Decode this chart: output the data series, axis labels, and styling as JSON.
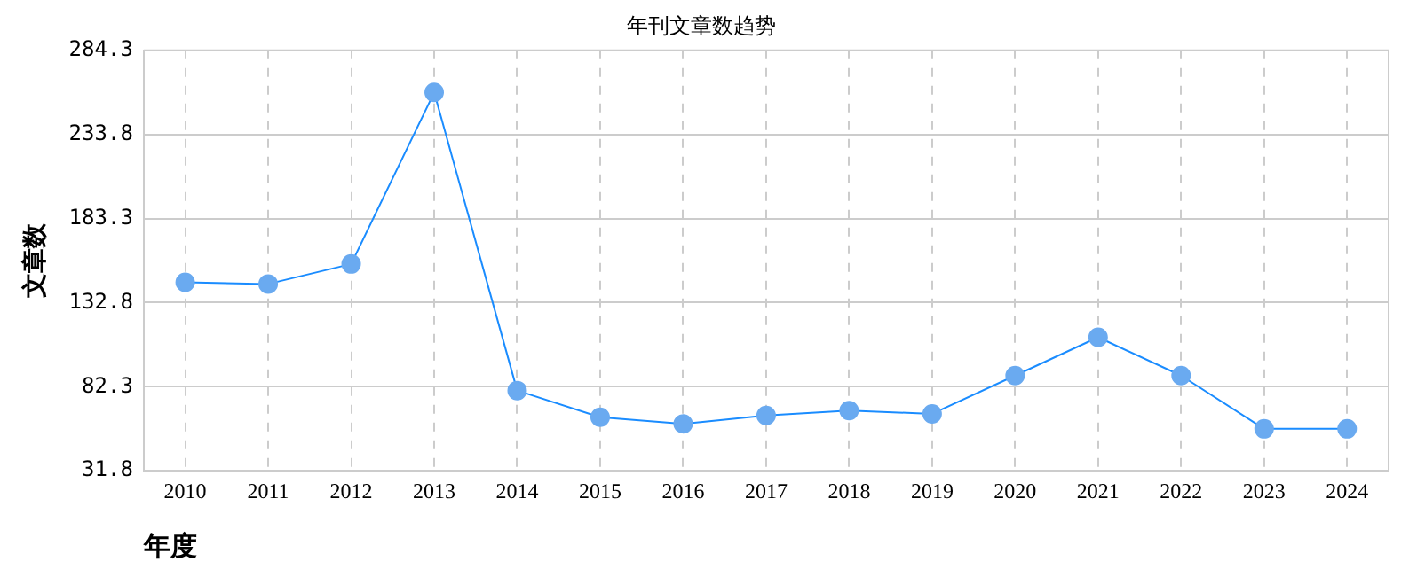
{
  "chart_data": {
    "type": "line",
    "title": "年刊文章数趋势",
    "xlabel": "年度",
    "ylabel": "文章数",
    "categories": [
      "2010",
      "2011",
      "2012",
      "2013",
      "2014",
      "2015",
      "2016",
      "2017",
      "2018",
      "2019",
      "2020",
      "2021",
      "2022",
      "2023",
      "2024"
    ],
    "series": [
      {
        "color": "#1a8cff",
        "values": [
          145,
          144,
          156,
          259,
          80,
          64,
          60,
          65,
          68,
          66,
          89,
          112,
          89,
          57,
          57
        ]
      }
    ],
    "ylim": [
      31.8,
      284.3
    ],
    "yticks": [
      31.8,
      82.3,
      132.8,
      183.3,
      233.8,
      284.3
    ],
    "grid": true,
    "legend": false,
    "marker": "circle",
    "line_style": "solid"
  }
}
